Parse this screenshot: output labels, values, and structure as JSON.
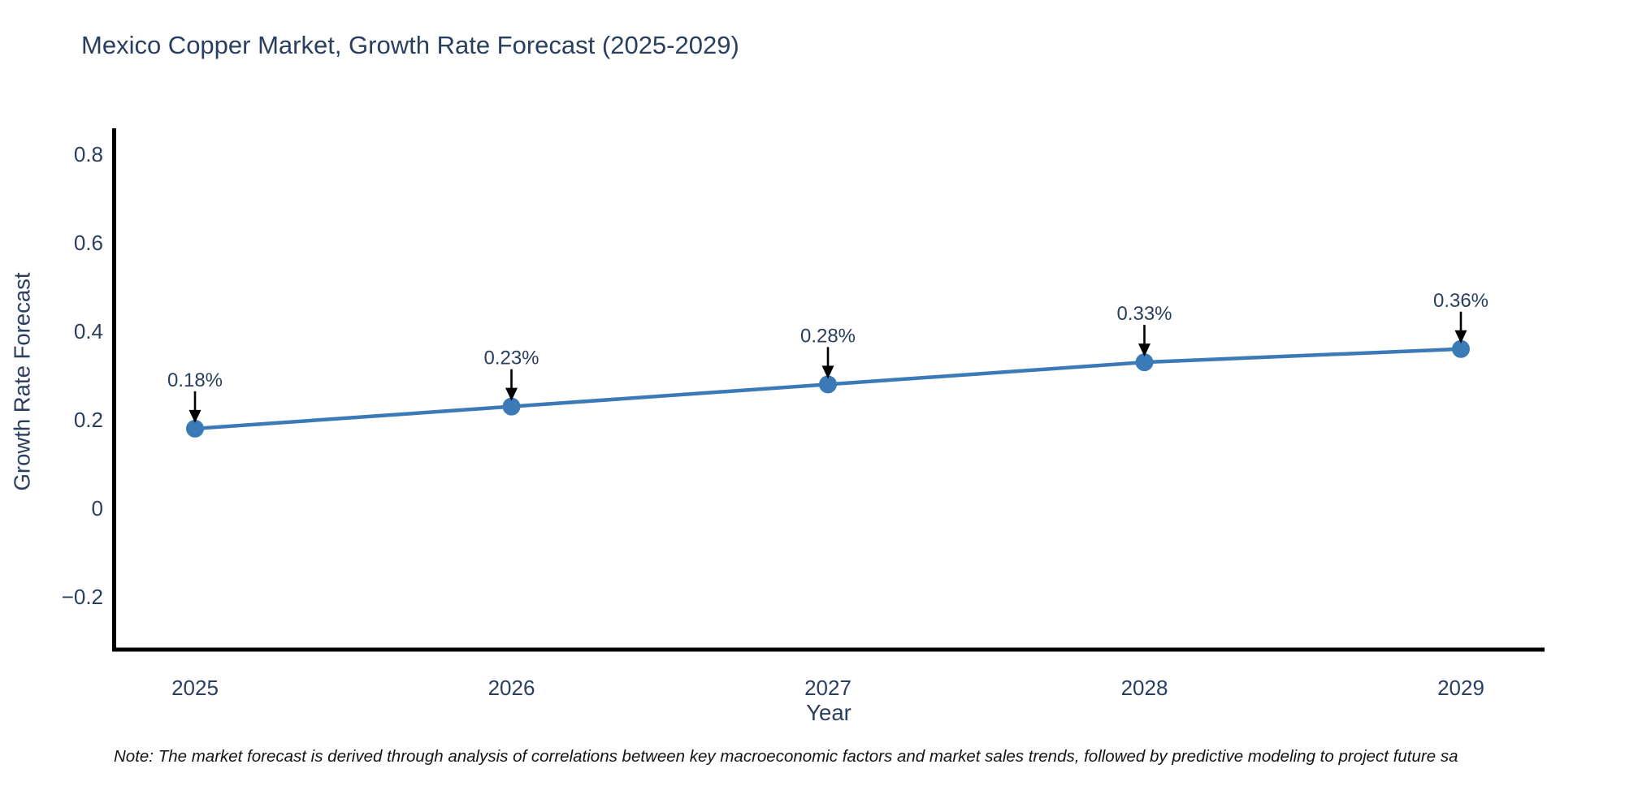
{
  "figure": {
    "background": "#ffffff"
  },
  "chart_data": {
    "type": "line",
    "title": "Mexico Copper Market, Growth Rate Forecast (2025-2029)",
    "xlabel": "Year",
    "ylabel": "Growth Rate Forecast",
    "x": [
      2025,
      2026,
      2027,
      2028,
      2029
    ],
    "y": [
      0.18,
      0.23,
      0.28,
      0.33,
      0.36
    ],
    "series": [
      {
        "name": "Growth Rate Forecast",
        "values": [
          0.18,
          0.23,
          0.28,
          0.33,
          0.36
        ]
      }
    ],
    "point_labels": [
      "0.18%",
      "0.23%",
      "0.28%",
      "0.33%",
      "0.36%"
    ],
    "xtick_labels": [
      "2025",
      "2026",
      "2027",
      "2028",
      "2029"
    ],
    "ytick_values": [
      0.8,
      0.6,
      0.4,
      0.2,
      0,
      -0.2
    ],
    "ytick_labels": [
      "0.8",
      "0.6",
      "0.4",
      "0.2",
      "0",
      "−0.2"
    ],
    "ylim": [
      -0.32,
      0.855
    ],
    "xlim": [
      2024.74,
      2029.26
    ],
    "grid": false,
    "legend": "none",
    "annotation_style": "label-above-with-down-arrow",
    "colors": {
      "line": "#3b7ab7",
      "marker": "#3b7ab7",
      "axis_spine": "#000000",
      "text": "#2a3f5f",
      "annotation_arrow": "#000000",
      "note_text": "#141414",
      "background": "#ffffff"
    }
  },
  "note": {
    "text": "Note: The market forecast is derived through analysis of correlations between key macroeconomic factors and market sales trends, followed by predictive modeling to project future sa"
  }
}
